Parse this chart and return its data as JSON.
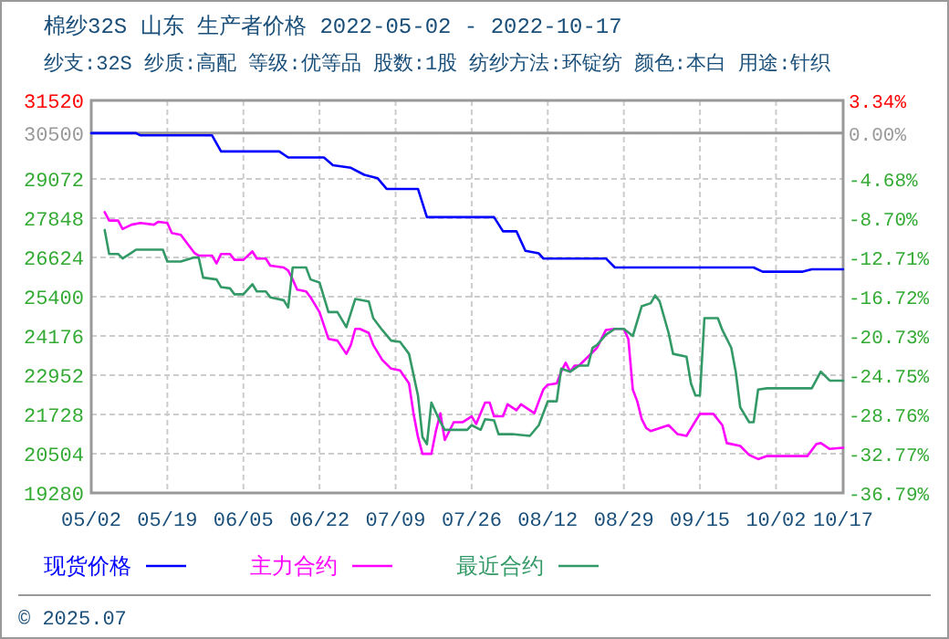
{
  "chart_data": {
    "type": "line",
    "title": "棉纱32S 山东 生产者价格 2022-05-02 - 2022-10-17",
    "subtitle": "纱支:32S 纱质:高配 等级:优等品 股数:1股 纺纱方法:环锭纺 颜色:本白 用途:针织",
    "xlim": [
      "2022-05-02",
      "2022-10-17"
    ],
    "xticks": [
      {
        "value": "2022-05-02",
        "label": "05/02"
      },
      {
        "value": "2022-05-19",
        "label": "05/19"
      },
      {
        "value": "2022-06-05",
        "label": "06/05"
      },
      {
        "value": "2022-06-22",
        "label": "06/22"
      },
      {
        "value": "2022-07-09",
        "label": "07/09"
      },
      {
        "value": "2022-07-26",
        "label": "07/26"
      },
      {
        "value": "2022-08-12",
        "label": "08/12"
      },
      {
        "value": "2022-08-29",
        "label": "08/29"
      },
      {
        "value": "2022-09-15",
        "label": "09/15"
      },
      {
        "value": "2022-10-02",
        "label": "10/02"
      },
      {
        "value": "2022-10-17",
        "label": "10/17"
      }
    ],
    "ylim": [
      19280,
      31520
    ],
    "yticks": [
      19280,
      20504,
      21728,
      22952,
      24176,
      25400,
      26624,
      27848,
      29072,
      30500,
      31520
    ],
    "y2lim": [
      -36.79,
      3.34
    ],
    "y2ticks": [
      {
        "value": -36.79,
        "label": "-36.79%"
      },
      {
        "value": -32.77,
        "label": "-32.77%"
      },
      {
        "value": -28.76,
        "label": "-28.76%"
      },
      {
        "value": -24.75,
        "label": "-24.75%"
      },
      {
        "value": -20.73,
        "label": "-20.73%"
      },
      {
        "value": -16.72,
        "label": "-16.72%"
      },
      {
        "value": -12.71,
        "label": "-12.71%"
      },
      {
        "value": -8.7,
        "label": "-8.70%"
      },
      {
        "value": -4.68,
        "label": "-4.68%"
      },
      {
        "value": 0.0,
        "label": "0.00%"
      },
      {
        "value": 3.34,
        "label": "3.34%"
      }
    ],
    "grid": true,
    "ref_lines": [
      {
        "axis": "y",
        "value": 30500,
        "color": "#999999",
        "line_style": "solid"
      }
    ],
    "legend": "bottom",
    "annotations": [
      "© 2025.07"
    ],
    "series": [
      {
        "name": "现货价格",
        "color": "#0000ff",
        "x": [
          "2022-05-02",
          "2022-05-12",
          "2022-05-13",
          "2022-05-29",
          "2022-05-31",
          "2022-06-13",
          "2022-06-15",
          "2022-06-23",
          "2022-06-25",
          "2022-06-29",
          "2022-07-02",
          "2022-07-05",
          "2022-07-07",
          "2022-07-14",
          "2022-07-16",
          "2022-07-31",
          "2022-08-02",
          "2022-08-05",
          "2022-08-07",
          "2022-08-10",
          "2022-08-11",
          "2022-08-25",
          "2022-08-27",
          "2022-09-27",
          "2022-09-29",
          "2022-10-08",
          "2022-10-10",
          "2022-10-17"
        ],
        "values": [
          30500,
          30500,
          30430,
          30430,
          29930,
          29930,
          29740,
          29740,
          29500,
          29420,
          29200,
          29090,
          28760,
          28760,
          27880,
          27880,
          27440,
          27440,
          26830,
          26750,
          26590,
          26590,
          26310,
          26310,
          26180,
          26180,
          26255,
          26255
        ]
      },
      {
        "name": "主力合约",
        "color": "#ff00ff",
        "x": [
          "2022-05-05",
          "2022-05-06",
          "2022-05-08",
          "2022-05-09",
          "2022-05-11",
          "2022-05-13",
          "2022-05-16",
          "2022-05-17",
          "2022-05-19",
          "2022-05-20",
          "2022-05-22",
          "2022-05-25",
          "2022-05-26",
          "2022-05-29",
          "2022-05-30",
          "2022-05-31",
          "2022-06-02",
          "2022-06-03",
          "2022-06-05",
          "2022-06-07",
          "2022-06-08",
          "2022-06-10",
          "2022-06-11",
          "2022-06-14",
          "2022-06-15",
          "2022-06-16",
          "2022-06-17",
          "2022-06-19",
          "2022-06-20",
          "2022-06-22",
          "2022-06-24",
          "2022-06-26",
          "2022-06-28",
          "2022-06-29",
          "2022-06-30",
          "2022-07-01",
          "2022-07-03",
          "2022-07-04",
          "2022-07-06",
          "2022-07-08",
          "2022-07-10",
          "2022-07-12",
          "2022-07-13",
          "2022-07-14",
          "2022-07-15",
          "2022-07-17",
          "2022-07-18",
          "2022-07-19",
          "2022-07-20",
          "2022-07-22",
          "2022-07-24",
          "2022-07-26",
          "2022-07-27",
          "2022-07-29",
          "2022-07-30",
          "2022-07-31",
          "2022-08-02",
          "2022-08-03",
          "2022-08-05",
          "2022-08-06",
          "2022-08-09",
          "2022-08-10",
          "2022-08-11",
          "2022-08-12",
          "2022-08-14",
          "2022-08-15",
          "2022-08-16",
          "2022-08-17",
          "2022-08-18",
          "2022-08-19",
          "2022-08-21",
          "2022-08-23",
          "2022-08-24",
          "2022-08-25",
          "2022-08-27",
          "2022-08-29",
          "2022-08-30",
          "2022-08-31",
          "2022-09-01",
          "2022-09-02",
          "2022-09-03",
          "2022-09-04",
          "2022-09-06",
          "2022-09-08",
          "2022-09-10",
          "2022-09-12",
          "2022-09-15",
          "2022-09-18",
          "2022-09-20",
          "2022-09-21",
          "2022-09-24",
          "2022-09-26",
          "2022-09-28",
          "2022-09-30",
          "2022-10-09",
          "2022-10-11",
          "2022-10-12",
          "2022-10-14",
          "2022-10-17"
        ],
        "values": [
          28035,
          27774,
          27774,
          27512,
          27645,
          27700,
          27645,
          27735,
          27700,
          27384,
          27330,
          26772,
          26680,
          26680,
          26438,
          26733,
          26733,
          26550,
          26550,
          26810,
          26590,
          26590,
          26366,
          26310,
          26215,
          25937,
          25620,
          25565,
          25381,
          24920,
          24085,
          24030,
          23617,
          23895,
          24397,
          24397,
          24268,
          23895,
          23434,
          23156,
          23100,
          22694,
          21765,
          21025,
          20500,
          20500,
          21208,
          21765,
          20930,
          21487,
          21487,
          21670,
          21430,
          22100,
          22100,
          21670,
          21670,
          22043,
          21860,
          22043,
          21765,
          22137,
          22505,
          22655,
          22694,
          23060,
          23340,
          23060,
          23250,
          23250,
          23528,
          23805,
          24085,
          24363,
          24397,
          24397,
          24085,
          22505,
          22137,
          21580,
          21303,
          21208,
          21303,
          21393,
          21114,
          21058,
          21747,
          21747,
          21393,
          20835,
          20745,
          20467,
          20335,
          20430,
          20430,
          20802,
          20835,
          20652,
          20690
        ]
      },
      {
        "name": "最近合约",
        "color": "#339966",
        "x": [
          "2022-05-05",
          "2022-05-06",
          "2022-05-08",
          "2022-05-09",
          "2022-05-11",
          "2022-05-12",
          "2022-05-18",
          "2022-05-19",
          "2022-05-22",
          "2022-05-25",
          "2022-05-26",
          "2022-05-27",
          "2022-05-30",
          "2022-05-31",
          "2022-06-02",
          "2022-06-03",
          "2022-06-05",
          "2022-06-07",
          "2022-06-08",
          "2022-06-10",
          "2022-06-11",
          "2022-06-14",
          "2022-06-15",
          "2022-06-16",
          "2022-06-19",
          "2022-06-20",
          "2022-06-22",
          "2022-06-24",
          "2022-06-26",
          "2022-06-28",
          "2022-06-30",
          "2022-07-03",
          "2022-07-04",
          "2022-07-06",
          "2022-07-08",
          "2022-07-10",
          "2022-07-12",
          "2022-07-14",
          "2022-07-15",
          "2022-07-16",
          "2022-07-17",
          "2022-07-19",
          "2022-07-20",
          "2022-07-25",
          "2022-07-26",
          "2022-07-28",
          "2022-07-29",
          "2022-07-31",
          "2022-08-01",
          "2022-08-04",
          "2022-08-08",
          "2022-08-10",
          "2022-08-12",
          "2022-08-14",
          "2022-08-15",
          "2022-08-17",
          "2022-08-18",
          "2022-08-19",
          "2022-08-21",
          "2022-08-22",
          "2022-08-23",
          "2022-08-25",
          "2022-08-27",
          "2022-08-29",
          "2022-08-31",
          "2022-09-02",
          "2022-09-04",
          "2022-09-05",
          "2022-09-06",
          "2022-09-08",
          "2022-09-09",
          "2022-09-12",
          "2022-09-13",
          "2022-09-14",
          "2022-09-15",
          "2022-09-16",
          "2022-09-19",
          "2022-09-20",
          "2022-09-22",
          "2022-09-23",
          "2022-09-24",
          "2022-09-26",
          "2022-09-27",
          "2022-09-28",
          "2022-09-30",
          "2022-10-10",
          "2022-10-12",
          "2022-10-14",
          "2022-10-17"
        ],
        "values": [
          27480,
          26733,
          26733,
          26590,
          26772,
          26865,
          26865,
          26494,
          26494,
          26622,
          26622,
          25993,
          25937,
          25698,
          25660,
          25475,
          25475,
          25790,
          25565,
          25565,
          25381,
          25290,
          25065,
          26310,
          26310,
          25937,
          25843,
          24920,
          24920,
          24452,
          25330,
          25253,
          24730,
          24363,
          24030,
          23990,
          23617,
          22320,
          21025,
          20802,
          22100,
          21487,
          21247,
          21247,
          21393,
          21247,
          21580,
          21545,
          21114,
          21114,
          21058,
          21393,
          22137,
          22137,
          23156,
          23060,
          23156,
          23250,
          23250,
          23805,
          23895,
          24213,
          24397,
          24397,
          24174,
          25103,
          25197,
          25437,
          25253,
          24268,
          23617,
          23528,
          22694,
          22320,
          22320,
          24730,
          24730,
          24363,
          23805,
          23060,
          21950,
          21487,
          21487,
          22505,
          22544,
          22544,
          23060,
          22783,
          22783
        ]
      }
    ]
  }
}
